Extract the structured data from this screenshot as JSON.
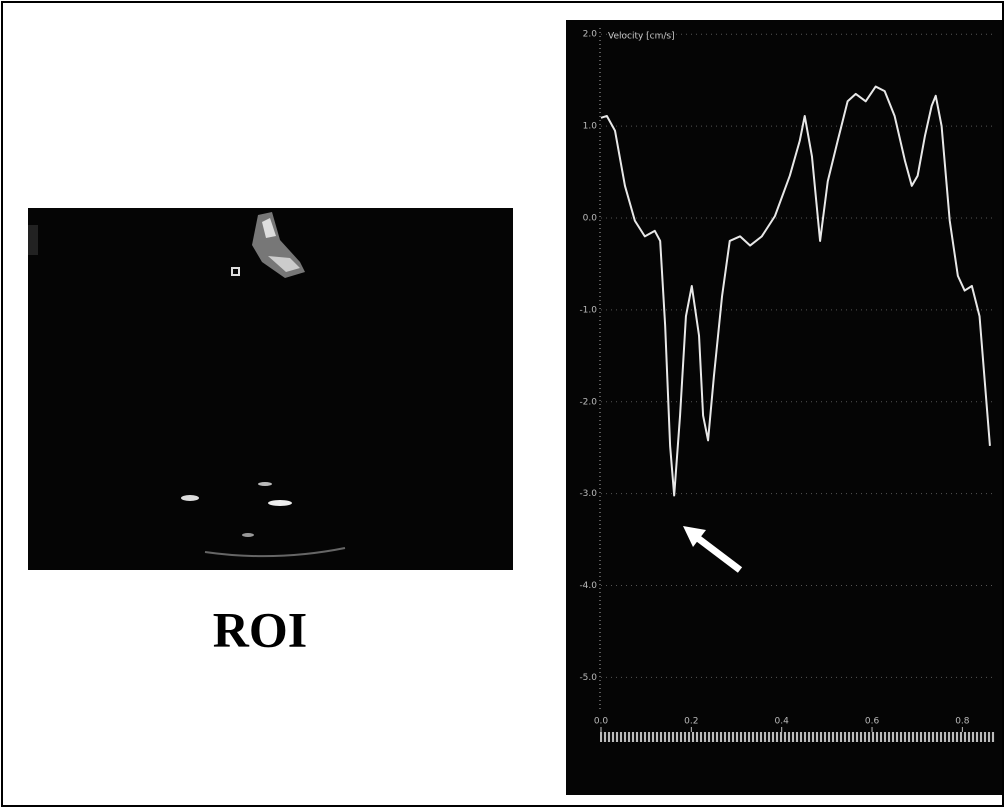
{
  "roi_label": "ROI",
  "chart_data": {
    "type": "line",
    "y_label": "Velocity [cm/s]",
    "color": "#e8e8e8",
    "grid": true,
    "xlim": [
      0,
      0.87
    ],
    "ylim": [
      -5.3,
      2.1
    ],
    "xticks": [
      {
        "value": 0,
        "label": "0.0"
      },
      0.2,
      0.4,
      0.6,
      0.8
    ],
    "yticks": [
      {
        "value": 2,
        "label": "2.0"
      },
      {
        "value": 1,
        "label": "1.0"
      },
      {
        "value": 0,
        "label": "0.0"
      },
      {
        "value": -1,
        "label": "-1.0"
      },
      {
        "value": -2,
        "label": "-2.0"
      },
      {
        "value": -3,
        "label": "-3.0"
      },
      {
        "value": -4,
        "label": "-4.0"
      },
      {
        "value": -5,
        "label": "-5.0"
      }
    ],
    "x": [
      0,
      0.013,
      0.031,
      0.053,
      0.075,
      0.097,
      0.119,
      0.131,
      0.142,
      0.153,
      0.162,
      0.175,
      0.188,
      0.201,
      0.217,
      0.226,
      0.237,
      0.25,
      0.268,
      0.285,
      0.308,
      0.33,
      0.356,
      0.385,
      0.418,
      0.44,
      0.451,
      0.467,
      0.485,
      0.502,
      0.524,
      0.546,
      0.564,
      0.586,
      0.608,
      0.628,
      0.65,
      0.673,
      0.688,
      0.701,
      0.717,
      0.732,
      0.741,
      0.754,
      0.772,
      0.79,
      0.805,
      0.821,
      0.838,
      0.861
    ],
    "values": [
      1.09,
      1.11,
      0.95,
      0.35,
      -0.03,
      -0.2,
      -0.14,
      -0.25,
      -1.17,
      -2.48,
      -3.02,
      -2.15,
      -1.07,
      -0.74,
      -1.28,
      -2.15,
      -2.42,
      -1.72,
      -0.85,
      -0.25,
      -0.2,
      -0.3,
      -0.2,
      0.02,
      0.46,
      0.84,
      1.11,
      0.67,
      -0.25,
      0.4,
      0.84,
      1.27,
      1.35,
      1.27,
      1.43,
      1.38,
      1.11,
      0.62,
      0.35,
      0.46,
      0.89,
      1.22,
      1.33,
      1.0,
      -0.03,
      -0.63,
      -0.79,
      -0.74,
      -1.07,
      -2.48
    ]
  }
}
